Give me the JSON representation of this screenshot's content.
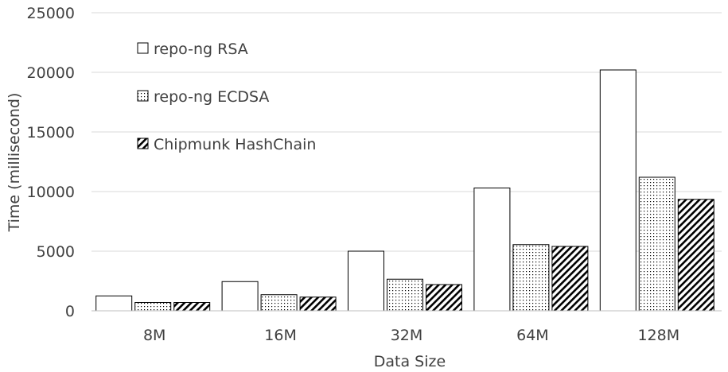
{
  "chart_data": {
    "type": "bar",
    "title": "",
    "xlabel": "Data Size",
    "ylabel": "Time (millisecond)",
    "ylim": [
      0,
      25000
    ],
    "yticks": [
      0,
      5000,
      10000,
      15000,
      20000,
      25000
    ],
    "ytick_labels": [
      "0",
      "5000",
      "10000",
      "15000",
      "20000",
      "25000"
    ],
    "categories": [
      "8M",
      "16M",
      "32M",
      "64M",
      "128M"
    ],
    "series": [
      {
        "name": "repo-ng RSA",
        "pattern": "solid-white",
        "values": [
          1250,
          2450,
          5000,
          10300,
          20200
        ]
      },
      {
        "name": "repo-ng ECDSA",
        "pattern": "dotted",
        "values": [
          700,
          1350,
          2650,
          5550,
          11200
        ]
      },
      {
        "name": "Chipmunk HashChain",
        "pattern": "diagonal-stripes",
        "values": [
          700,
          1150,
          2200,
          5400,
          9350
        ]
      }
    ],
    "grid": true,
    "legend_position": "top-left"
  }
}
